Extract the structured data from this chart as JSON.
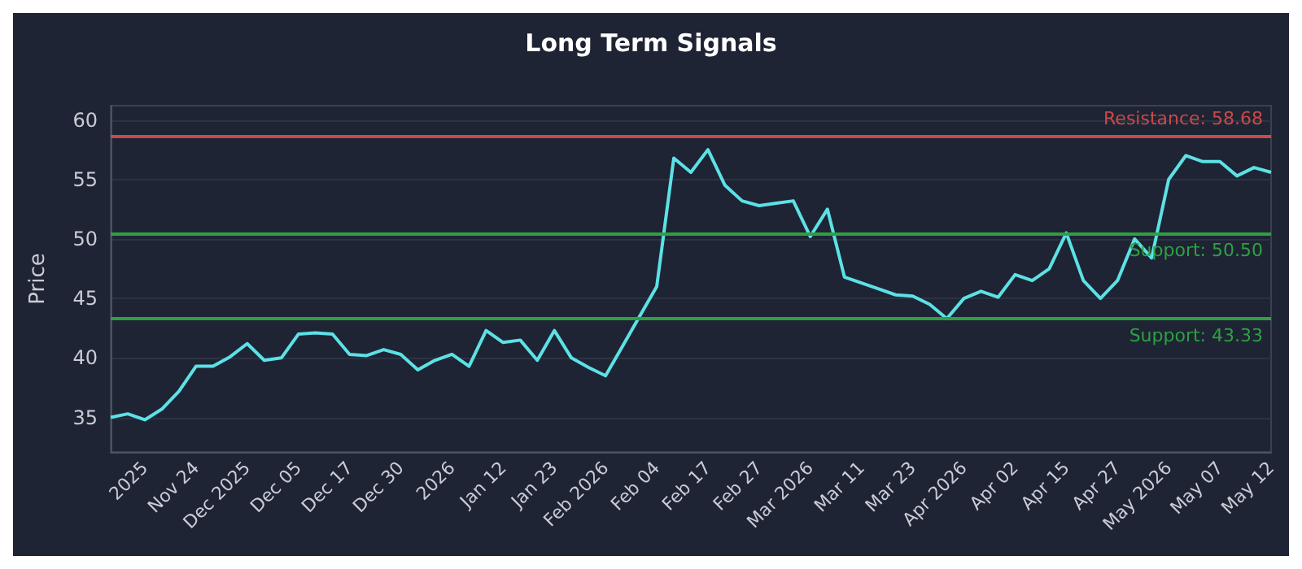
{
  "chart_data": {
    "type": "line",
    "title": "Long Term Signals",
    "ylabel": "Price",
    "categories": [
      null,
      null,
      "2025",
      null,
      null,
      "Nov 24",
      null,
      null,
      "Dec 2025",
      null,
      null,
      "Dec 05",
      null,
      null,
      "Dec 17",
      null,
      null,
      "Dec 30",
      null,
      null,
      "2026",
      null,
      null,
      "Jan 12",
      null,
      null,
      "Jan 23",
      null,
      null,
      "Feb 2026",
      null,
      null,
      "Feb 04",
      null,
      null,
      "Feb 17",
      null,
      null,
      "Feb 27",
      null,
      null,
      "Mar 2026",
      null,
      null,
      "Mar 11",
      null,
      null,
      "Mar 23",
      null,
      null,
      "Apr 2026",
      null,
      null,
      "Apr 02",
      null,
      null,
      "Apr 15",
      null,
      null,
      "Apr 27",
      null,
      null,
      "May 2026",
      null,
      null,
      "May 07",
      null,
      null,
      "May 12"
    ],
    "series": [
      {
        "color": "#5ce1e6",
        "values": [
          35.0,
          35.3,
          34.8,
          35.7,
          37.2,
          39.3,
          39.3,
          40.1,
          41.2,
          39.8,
          40.0,
          42.0,
          42.1,
          42.0,
          40.3,
          40.2,
          40.7,
          40.3,
          39.0,
          39.8,
          40.3,
          39.3,
          42.3,
          41.3,
          41.5,
          39.8,
          42.3,
          40.0,
          39.2,
          38.5,
          41.0,
          43.5,
          46.0,
          56.8,
          55.6,
          57.5,
          54.5,
          53.2,
          52.8,
          53.0,
          53.2,
          50.2,
          52.5,
          46.8,
          46.3,
          45.8,
          45.3,
          45.2,
          44.5,
          43.3,
          45.0,
          45.6,
          45.1,
          47.0,
          46.5,
          47.5,
          50.5,
          46.5,
          45.0,
          46.5,
          50.0,
          48.4,
          55.0,
          57.0,
          56.5,
          56.5,
          55.3,
          56.0,
          55.6
        ]
      }
    ],
    "ylim": [
      32.1,
      61.2
    ],
    "yticks": [
      35,
      40,
      45,
      50,
      55,
      60
    ],
    "grid": "y",
    "marker": "none",
    "line_style": "solid",
    "ref_lines": [
      {
        "axis": "y",
        "value": 58.68,
        "label": "Resistance: 58.68",
        "color": "#c94a4a"
      },
      {
        "axis": "y",
        "value": 50.5,
        "label": "Support: 50.50",
        "color": "#2ea043"
      },
      {
        "axis": "y",
        "value": 43.33,
        "label": "Support: 43.33",
        "color": "#2ea043"
      }
    ]
  }
}
